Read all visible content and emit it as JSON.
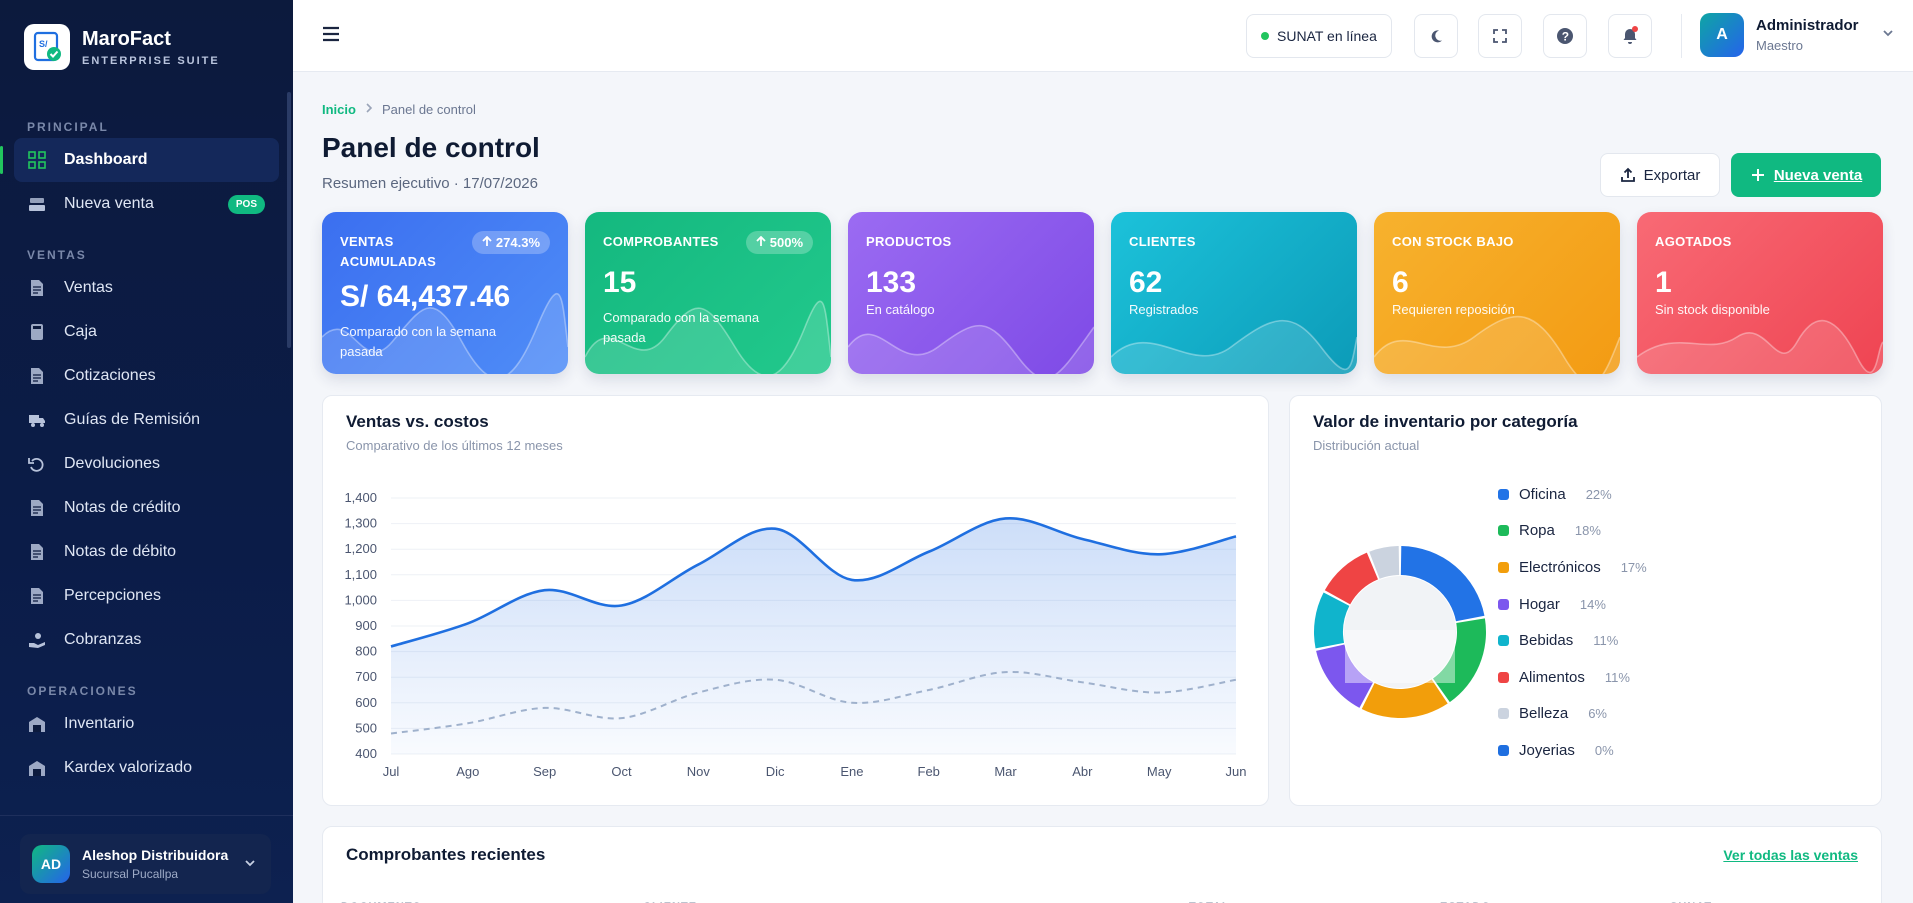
{
  "brand": {
    "name": "MaroFact",
    "sub": "ENTERPRISE SUITE"
  },
  "nav": {
    "sections": [
      {
        "title": "PRINCIPAL",
        "items": [
          {
            "label": "Dashboard",
            "icon": "grid-icon",
            "active": true
          },
          {
            "label": "Nueva venta",
            "icon": "register-icon",
            "badge": "POS"
          }
        ]
      },
      {
        "title": "VENTAS",
        "items": [
          {
            "label": "Ventas",
            "icon": "document-icon"
          },
          {
            "label": "Caja",
            "icon": "calculator-icon"
          },
          {
            "label": "Cotizaciones",
            "icon": "document-icon"
          },
          {
            "label": "Guías de Remisión",
            "icon": "truck-icon"
          },
          {
            "label": "Devoluciones",
            "icon": "undo-icon"
          },
          {
            "label": "Notas de crédito",
            "icon": "document-icon"
          },
          {
            "label": "Notas de débito",
            "icon": "document-icon"
          },
          {
            "label": "Percepciones",
            "icon": "document-icon"
          },
          {
            "label": "Cobranzas",
            "icon": "hand-coin-icon"
          }
        ]
      },
      {
        "title": "OPERACIONES",
        "items": [
          {
            "label": "Inventario",
            "icon": "warehouse-icon"
          },
          {
            "label": "Kardex valorizado",
            "icon": "warehouse-icon"
          }
        ]
      }
    ]
  },
  "branch": {
    "initials": "AD",
    "name": "Aleshop Distribuidora",
    "sub": "Sucursal Pucallpa"
  },
  "topbar": {
    "status": "SUNAT en línea",
    "user_initial": "A",
    "user_name": "Administrador",
    "user_role": "Maestro"
  },
  "header": {
    "crumb_home": "Inicio",
    "crumb_current": "Panel de control",
    "title": "Panel de control",
    "subtitle": "Resumen ejecutivo · 17/07/2026",
    "export_label": "Exportar",
    "new_sale_label": "Nueva venta"
  },
  "kpis": [
    {
      "label": "VENTAS ACUMULADAS",
      "value": "S/ 64,437.46",
      "hint": "Comparado con la semana pasada",
      "badge": "274.3%",
      "from": "#3b6ff0",
      "to": "#4f8df7"
    },
    {
      "label": "COMPROBANTES",
      "value": "15",
      "hint": "Comparado con la semana pasada",
      "badge": "500%",
      "from": "#14b87f",
      "to": "#22c98c"
    },
    {
      "label": "PRODUCTOS",
      "value": "133",
      "hint": "En catálogo",
      "from": "#9b6bf2",
      "to": "#7e4ae6"
    },
    {
      "label": "CLIENTES",
      "value": "62",
      "hint": "Registrados",
      "from": "#1cc2da",
      "to": "#0c9bb8"
    },
    {
      "label": "CON STOCK BAJO",
      "value": "6",
      "hint": "Requieren reposición",
      "from": "#f7b22e",
      "to": "#f39b13"
    },
    {
      "label": "AGOTADOS",
      "value": "1",
      "hint": "Sin stock disponible",
      "from": "#f86a75",
      "to": "#ef4452"
    }
  ],
  "sales_chart": {
    "title": "Ventas vs. costos",
    "subtitle": "Comparativo de los últimos 12 meses"
  },
  "chart_data": [
    {
      "type": "area",
      "categories": [
        "Jul",
        "Ago",
        "Sep",
        "Oct",
        "Nov",
        "Dic",
        "Ene",
        "Feb",
        "Mar",
        "Abr",
        "May",
        "Jun"
      ],
      "series": [
        {
          "values": [
            820,
            910,
            1040,
            980,
            1140,
            1280,
            1080,
            1190,
            1320,
            1240,
            1180,
            1250
          ],
          "color": "#1f6fe0"
        },
        {
          "values": [
            480,
            520,
            580,
            540,
            640,
            690,
            600,
            650,
            720,
            680,
            640,
            690
          ],
          "color": "#9fb1cc",
          "dashed": true
        }
      ],
      "yticks": [
        400,
        500,
        600,
        700,
        800,
        900,
        "1,000",
        "1,100",
        "1,200",
        "1,300",
        "1,400"
      ],
      "ylim": [
        400,
        1400
      ]
    },
    {
      "type": "pie",
      "donut": true,
      "labels": [
        "Oficina",
        "Ropa",
        "Electrónicos",
        "Hogar",
        "Bebidas",
        "Alimentos",
        "Belleza",
        "Joyerias"
      ],
      "values": [
        22,
        18,
        17,
        14,
        11,
        11,
        6,
        0
      ],
      "pct_labels": [
        "22%",
        "18%",
        "17%",
        "14%",
        "11%",
        "11%",
        "6%",
        "0%"
      ],
      "colors": [
        "#2273e6",
        "#1dba5a",
        "#f29e0b",
        "#7c57ee",
        "#10b4cc",
        "#ef4444",
        "#cbd3df",
        "#1f6fe0"
      ]
    }
  ],
  "inventory_chart": {
    "title": "Valor de inventario por categoría",
    "subtitle": "Distribución actual"
  },
  "recent": {
    "title": "Comprobantes recientes",
    "link": "Ver todas las ventas",
    "columns": [
      "DOCUMENTO",
      "CLIENTE",
      "TOTAL",
      "ESTADO",
      "SUNAT"
    ]
  }
}
